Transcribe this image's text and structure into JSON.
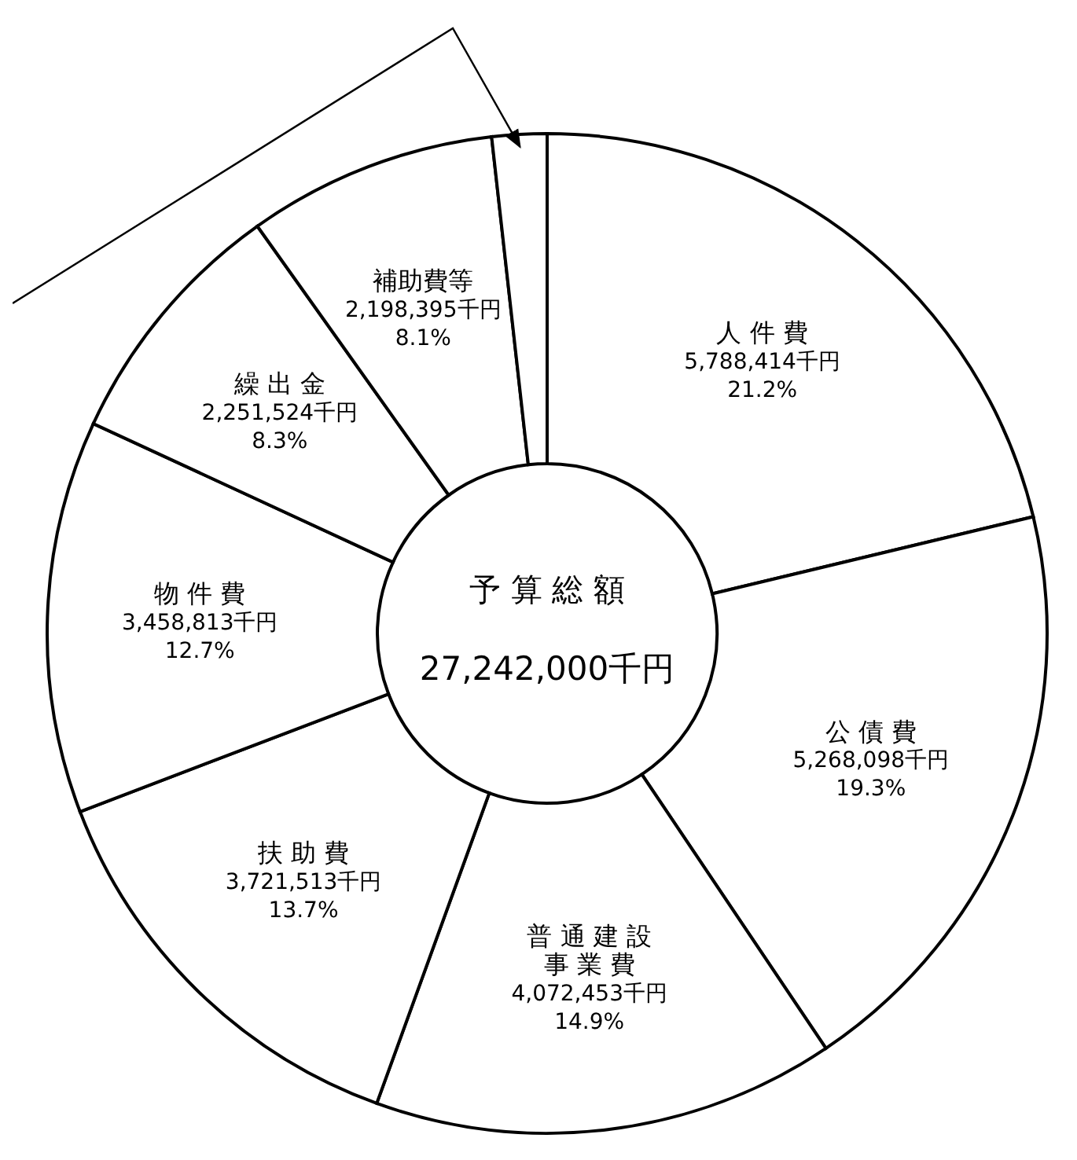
{
  "chart_data": {
    "type": "donut",
    "title": "予 算 総 額",
    "subtitle": "27,242,000千円",
    "categories": [
      "人 件 費",
      "公 債 費",
      "普 通 建 設事 業 費",
      "扶 助 費",
      "物 件 費",
      "繰 出 金",
      "補助費等",
      null
    ],
    "values": [
      5788414,
      5268098,
      4072453,
      3721513,
      3458813,
      2251524,
      2198395,
      482790
    ],
    "value_labels": [
      "5,788,414千円\n21.2%",
      "5,268,098千円\n19.3%",
      "4,072,453千円\n14.9%",
      "3,721,513千円\n13.7%",
      "3,458,813千円\n12.7%",
      "2,251,524千円\n8.3%",
      "2,198,395千円\n8.1%",
      null
    ],
    "colors": [
      "#ffffff",
      "#ffffff",
      "#ffffff",
      "#ffffff",
      "#ffffff",
      "#ffffff",
      "#ffffff",
      "#ffffff"
    ]
  }
}
